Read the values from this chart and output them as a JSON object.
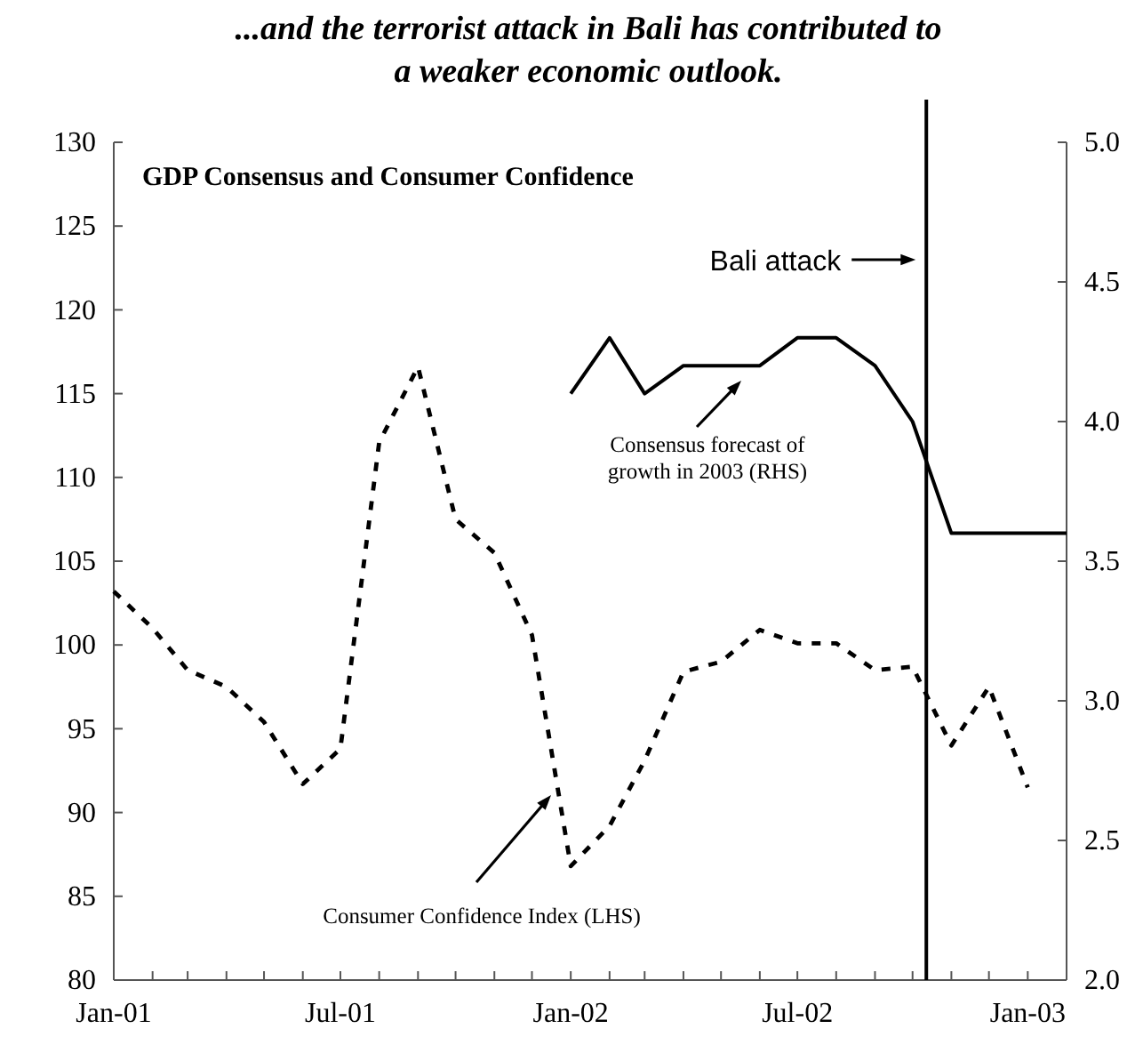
{
  "chart_data": {
    "type": "line",
    "title": "...and the terrorist attack in Bali has contributed to a weaker economic outlook.",
    "subtitle": "GDP Consensus and Consumer Confidence",
    "x": [
      "2001-01",
      "2001-02",
      "2001-03",
      "2001-04",
      "2001-05",
      "2001-06",
      "2001-07",
      "2001-08",
      "2001-09",
      "2001-10",
      "2001-11",
      "2001-12",
      "2002-01",
      "2002-02",
      "2002-03",
      "2002-04",
      "2002-05",
      "2002-06",
      "2002-07",
      "2002-08",
      "2002-09",
      "2002-10",
      "2002-11",
      "2002-12",
      "2003-01"
    ],
    "series": [
      {
        "name": "Consumer Confidence Index (LHS)",
        "color": "#000000",
        "line_style": "dashed",
        "values": [
          103.2,
          101.0,
          98.5,
          97.5,
          95.4,
          91.7,
          93.8,
          112.1,
          116.6,
          107.5,
          105.5,
          100.6,
          86.8,
          89.2,
          93.1,
          98.4,
          99.0,
          100.9,
          100.1,
          100.1,
          98.5,
          98.7,
          94.0,
          97.5,
          91.5
        ]
      },
      {
        "name": "Consensus forecast of growth in 2003 (RHS)",
        "color": "#000000",
        "line_style": "solid",
        "axis": "y2",
        "x": [
          "2002-01",
          "2002-02",
          "2002-03",
          "2002-04",
          "2002-05",
          "2002-06",
          "2002-07",
          "2002-08",
          "2002-09",
          "2002-10",
          "2002-11",
          "2002-12",
          "2003-01",
          "2003-02"
        ],
        "values": [
          4.1,
          4.3,
          4.1,
          4.2,
          4.2,
          4.2,
          4.3,
          4.3,
          4.2,
          4.0,
          3.6,
          3.6,
          3.6,
          3.6
        ]
      }
    ],
    "xlim": [
      "2001-01",
      "2003-02"
    ],
    "xticks": [
      {
        "value": "2001-01",
        "label": "Jan-01"
      },
      {
        "value": "2001-02",
        "label": null
      },
      {
        "value": "2001-03",
        "label": null
      },
      {
        "value": "2001-04",
        "label": null
      },
      {
        "value": "2001-05",
        "label": null
      },
      {
        "value": "2001-06",
        "label": null
      },
      {
        "value": "2001-07",
        "label": "Jul-01"
      },
      {
        "value": "2001-08",
        "label": null
      },
      {
        "value": "2001-09",
        "label": null
      },
      {
        "value": "2001-10",
        "label": null
      },
      {
        "value": "2001-11",
        "label": null
      },
      {
        "value": "2001-12",
        "label": null
      },
      {
        "value": "2002-01",
        "label": "Jan-02"
      },
      {
        "value": "2002-02",
        "label": null
      },
      {
        "value": "2002-03",
        "label": null
      },
      {
        "value": "2002-04",
        "label": null
      },
      {
        "value": "2002-05",
        "label": null
      },
      {
        "value": "2002-06",
        "label": null
      },
      {
        "value": "2002-07",
        "label": "Jul-02"
      },
      {
        "value": "2002-08",
        "label": null
      },
      {
        "value": "2002-09",
        "label": null
      },
      {
        "value": "2002-10",
        "label": null
      },
      {
        "value": "2002-11",
        "label": null
      },
      {
        "value": "2002-12",
        "label": null
      },
      {
        "value": "2003-01",
        "label": "Jan-03"
      }
    ],
    "ylim": [
      80,
      130
    ],
    "yticks": [
      80,
      85,
      90,
      95,
      100,
      105,
      110,
      115,
      120,
      125,
      130
    ],
    "y2lim": [
      2,
      5
    ],
    "y2ticks": [
      {
        "value": 2,
        "label": "2.0"
      },
      {
        "value": 2.5,
        "label": "2.5"
      },
      {
        "value": 3,
        "label": "3.0"
      },
      {
        "value": 3.5,
        "label": "3.5"
      },
      {
        "value": 4,
        "label": "4.0"
      },
      {
        "value": 4.5,
        "label": "4.5"
      },
      {
        "value": 5,
        "label": "5.0"
      }
    ],
    "ref_lines": [
      {
        "axis": "x",
        "value": "2002-10-12",
        "label": "Bali attack",
        "color": "#000000"
      }
    ],
    "grid": false
  }
}
